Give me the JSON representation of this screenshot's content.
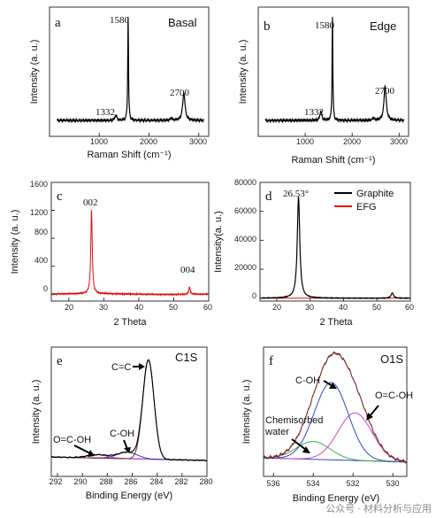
{
  "chart_data": [
    {
      "panel": "a",
      "type": "line",
      "title": "Basal",
      "xlabel": "Raman Shift (cm⁻¹)",
      "ylabel": "Intensity (a. u.)",
      "xlim": [
        0,
        3200
      ],
      "xticks": [
        1000,
        2000,
        3000
      ],
      "ylim": [
        0,
        1
      ],
      "series": [
        {
          "peaks": [
            [
              1332,
              0.05
            ],
            [
              1580,
              1.0
            ],
            [
              2700,
              0.26
            ]
          ]
        }
      ],
      "annotations": [
        "1332",
        "1580",
        "2700"
      ]
    },
    {
      "panel": "b",
      "type": "line",
      "title": "Edge",
      "xlabel": "Raman Shift (cm⁻¹)",
      "ylabel": "Intensity (a. u.)",
      "xlim": [
        0,
        3200
      ],
      "xticks": [
        1000,
        2000,
        3000
      ],
      "ylim": [
        0,
        1
      ],
      "series": [
        {
          "peaks": [
            [
              1332,
              0.09
            ],
            [
              1580,
              1.0
            ],
            [
              2700,
              0.33
            ]
          ]
        }
      ],
      "annotations": [
        "1332",
        "1580",
        "2700"
      ]
    },
    {
      "panel": "c",
      "type": "line",
      "xlabel": "2 Theta",
      "ylabel": "Intensity (a. u.)",
      "xlim": [
        15,
        60
      ],
      "xticks": [
        20,
        30,
        40,
        50,
        60
      ],
      "ylim": [
        -100,
        1600
      ],
      "yticks": [
        0,
        400,
        800,
        1200,
        1600
      ],
      "series": [
        {
          "color": "#e01010",
          "peaks": [
            [
              26.5,
              1190
            ],
            [
              54.5,
              110
            ]
          ]
        }
      ],
      "annotations": [
        "002",
        "004"
      ]
    },
    {
      "panel": "d",
      "type": "line",
      "xlabel": "2 Theta",
      "ylabel": "Intensity(a. u.)",
      "xlim": [
        15,
        60
      ],
      "xticks": [
        20,
        30,
        40,
        50,
        60
      ],
      "ylim": [
        -2000,
        80000
      ],
      "yticks": [
        0,
        20000,
        40000,
        60000,
        80000
      ],
      "series": [
        {
          "name": "Graphite",
          "color": "#000000",
          "peaks": [
            [
              26.53,
              70000
            ],
            [
              54.6,
              3600
            ]
          ]
        },
        {
          "name": "EFG",
          "color": "#e01010",
          "peaks": []
        }
      ],
      "legend": "top-right",
      "annotations": [
        "26.53°"
      ]
    },
    {
      "panel": "e",
      "type": "line",
      "title": "C1S",
      "xlabel": "Binding Energy (eV)",
      "ylabel": "Intensity (a. u.)",
      "xlim": [
        292.5,
        280
      ],
      "xticks": [
        292,
        290,
        288,
        286,
        284,
        282,
        280
      ],
      "xreversed": true,
      "series": [
        {
          "name": "C=C",
          "color": "#7a2a2a",
          "peak": 284.7,
          "height": 0.9
        },
        {
          "name": "C-OH",
          "color": "#3333aa",
          "peak": 286.4,
          "height": 0.06
        },
        {
          "name": "O=C-OH",
          "color": "#cc44cc",
          "peak": 288.8,
          "height": 0.03
        }
      ],
      "annotations": [
        "C=C",
        "C-OH",
        "O=C-OH"
      ]
    },
    {
      "panel": "f",
      "type": "line",
      "title": "O1S",
      "xlabel": "Binding Energy (eV)",
      "ylabel": "Intensity (a. u.)",
      "xlim": [
        536.5,
        529.3
      ],
      "xticks": [
        536,
        534,
        532,
        530
      ],
      "xreversed": true,
      "series": [
        {
          "name": "C-OH",
          "color": "#3344bb",
          "peak": 533.1,
          "height": 0.78
        },
        {
          "name": "O=C-OH",
          "color": "#cc44cc",
          "peak": 531.9,
          "height": 0.48
        },
        {
          "name": "Chemisorbed water",
          "color": "#44aa44",
          "peak": 534.0,
          "height": 0.18
        }
      ],
      "annotations": [
        "C-OH",
        "O=C-OH",
        "Chemisorbed water"
      ]
    }
  ],
  "watermark": "公众号 · 材料分析与应用"
}
